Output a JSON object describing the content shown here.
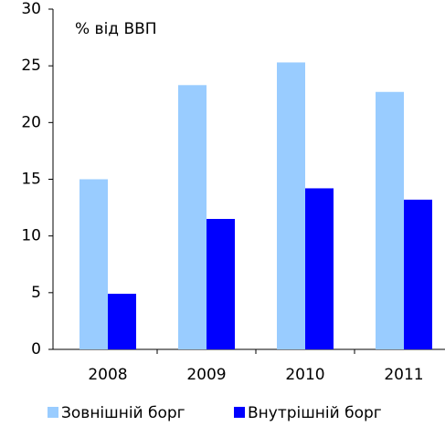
{
  "chart_data": {
    "type": "bar",
    "annotation": "% від ВВП",
    "categories": [
      "2008",
      "2009",
      "2010",
      "2011"
    ],
    "series": [
      {
        "name": "Зовнішній борг",
        "color": "#99ccff",
        "values": [
          15.0,
          23.3,
          25.3,
          22.7
        ]
      },
      {
        "name": "Внутрішній борг",
        "color": "#0000ff",
        "values": [
          4.9,
          11.5,
          14.2,
          13.2
        ]
      }
    ],
    "ylim": [
      0,
      30
    ],
    "yticks": [
      0,
      5,
      10,
      15,
      20,
      25,
      30
    ],
    "grid": false,
    "legend": "bottom"
  }
}
